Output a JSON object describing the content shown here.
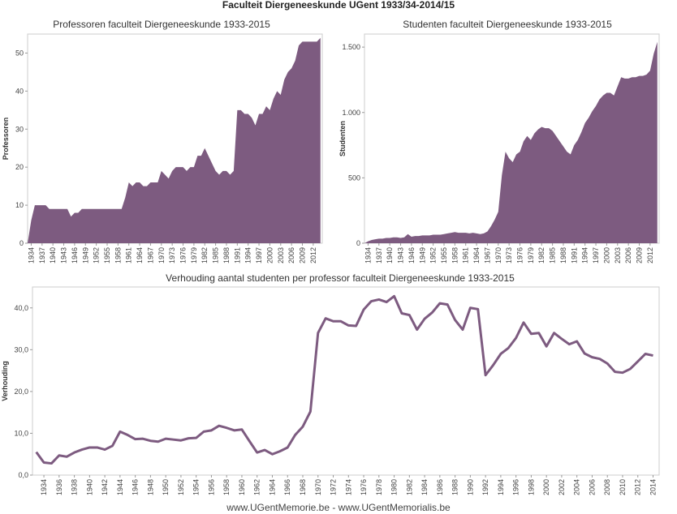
{
  "page": {
    "title": "Faculteit Diergeneeskunde UGent 1933/34-2014/15",
    "footer": "www.UGentMemorie.be - www.UGentMemorialis.be"
  },
  "colors": {
    "fill": "#7d5b80",
    "line": "#7d5b80",
    "frame": "#cccccc"
  },
  "chart_data": [
    {
      "type": "area",
      "title": "Professoren faculteit Diergeneeskunde 1933-2015",
      "ylabel": "Professoren",
      "xlabel": "",
      "ylim": [
        0,
        55
      ],
      "yticks": [
        0,
        10,
        20,
        30,
        40,
        50
      ],
      "ytick_labels": [
        "0",
        "10",
        "20",
        "30",
        "40",
        "50"
      ],
      "xticks": [
        1934,
        1937,
        1940,
        1943,
        1946,
        1949,
        1952,
        1955,
        1958,
        1961,
        1964,
        1967,
        1970,
        1973,
        1976,
        1979,
        1982,
        1985,
        1988,
        1991,
        1994,
        1997,
        2000,
        2003,
        2006,
        2009,
        2012
      ],
      "x": [
        1933,
        1934,
        1935,
        1936,
        1937,
        1938,
        1939,
        1940,
        1941,
        1942,
        1943,
        1944,
        1945,
        1946,
        1947,
        1948,
        1949,
        1950,
        1951,
        1952,
        1953,
        1954,
        1955,
        1956,
        1957,
        1958,
        1959,
        1960,
        1961,
        1962,
        1963,
        1964,
        1965,
        1966,
        1967,
        1968,
        1969,
        1970,
        1971,
        1972,
        1973,
        1974,
        1975,
        1976,
        1977,
        1978,
        1979,
        1980,
        1981,
        1982,
        1983,
        1984,
        1985,
        1986,
        1987,
        1988,
        1989,
        1990,
        1991,
        1992,
        1993,
        1994,
        1995,
        1996,
        1997,
        1998,
        1999,
        2000,
        2001,
        2002,
        2003,
        2004,
        2005,
        2006,
        2007,
        2008,
        2009,
        2010,
        2011,
        2012,
        2013,
        2014
      ],
      "values": [
        0,
        6,
        10,
        10,
        10,
        10,
        9,
        9,
        9,
        9,
        9,
        9,
        7,
        8,
        8,
        9,
        9,
        9,
        9,
        9,
        9,
        9,
        9,
        9,
        9,
        9,
        9,
        12,
        16,
        15,
        16,
        16,
        15,
        15,
        16,
        16,
        16,
        19,
        18,
        17,
        19,
        20,
        20,
        20,
        19,
        20,
        20,
        23,
        23,
        25,
        23,
        21,
        19,
        18,
        19,
        19,
        18,
        19,
        35,
        35,
        34,
        34,
        33,
        31,
        34,
        34,
        36,
        35,
        38,
        40,
        39,
        43,
        45,
        46,
        48,
        52,
        53,
        53,
        53,
        53,
        53,
        54
      ]
    },
    {
      "type": "area",
      "title": "Studenten faculteit Diergeneeskunde 1933-2015",
      "ylabel": "Studenten",
      "xlabel": "",
      "ylim": [
        0,
        1600
      ],
      "yticks": [
        0,
        500,
        1000,
        1500
      ],
      "ytick_labels": [
        "0",
        "500",
        "1.000",
        "1.500"
      ],
      "xticks": [
        1934,
        1937,
        1940,
        1943,
        1946,
        1949,
        1952,
        1955,
        1958,
        1961,
        1964,
        1967,
        1970,
        1973,
        1976,
        1979,
        1982,
        1985,
        1988,
        1991,
        1994,
        1997,
        2000,
        2003,
        2006,
        2009,
        2012
      ],
      "x": [
        1933,
        1934,
        1935,
        1936,
        1937,
        1938,
        1939,
        1940,
        1941,
        1942,
        1943,
        1944,
        1945,
        1946,
        1947,
        1948,
        1949,
        1950,
        1951,
        1952,
        1953,
        1954,
        1955,
        1956,
        1957,
        1958,
        1959,
        1960,
        1961,
        1962,
        1963,
        1964,
        1965,
        1966,
        1967,
        1968,
        1969,
        1970,
        1971,
        1972,
        1973,
        1974,
        1975,
        1976,
        1977,
        1978,
        1979,
        1980,
        1981,
        1982,
        1983,
        1984,
        1985,
        1986,
        1987,
        1988,
        1989,
        1990,
        1991,
        1992,
        1993,
        1994,
        1995,
        1996,
        1997,
        1998,
        1999,
        2000,
        2001,
        2002,
        2003,
        2004,
        2005,
        2006,
        2007,
        2008,
        2009,
        2010,
        2011,
        2012,
        2013,
        2014
      ],
      "values": [
        0,
        15,
        25,
        30,
        35,
        35,
        40,
        40,
        45,
        45,
        40,
        45,
        70,
        50,
        55,
        55,
        60,
        60,
        60,
        65,
        65,
        65,
        70,
        75,
        80,
        85,
        80,
        80,
        80,
        75,
        80,
        75,
        70,
        75,
        90,
        130,
        180,
        240,
        520,
        700,
        650,
        620,
        680,
        700,
        780,
        820,
        790,
        840,
        870,
        890,
        880,
        880,
        860,
        820,
        780,
        740,
        700,
        680,
        750,
        790,
        850,
        920,
        960,
        1010,
        1050,
        1100,
        1130,
        1150,
        1150,
        1130,
        1200,
        1270,
        1260,
        1260,
        1270,
        1270,
        1280,
        1280,
        1290,
        1320,
        1450,
        1540
      ]
    },
    {
      "type": "line",
      "title": "Verhouding aantal studenten per professor faculteit Diergeneeskunde 1933-2015",
      "ylabel": "Verhouding",
      "xlabel": "",
      "ylim": [
        0,
        45
      ],
      "yticks": [
        0,
        10,
        20,
        30,
        40
      ],
      "ytick_labels": [
        "0,0",
        "10,0",
        "20,0",
        "30,0",
        "40,0"
      ],
      "xticks": [
        1934,
        1936,
        1938,
        1940,
        1942,
        1944,
        1946,
        1948,
        1950,
        1952,
        1954,
        1956,
        1958,
        1960,
        1962,
        1964,
        1966,
        1968,
        1970,
        1972,
        1974,
        1976,
        1978,
        1980,
        1982,
        1984,
        1986,
        1988,
        1990,
        1992,
        1994,
        1996,
        1998,
        2000,
        2002,
        2004,
        2006,
        2008,
        2010,
        2012,
        2014
      ],
      "x": [
        1933,
        1934,
        1935,
        1936,
        1937,
        1938,
        1939,
        1940,
        1941,
        1942,
        1943,
        1944,
        1945,
        1946,
        1947,
        1948,
        1949,
        1950,
        1951,
        1952,
        1953,
        1954,
        1955,
        1956,
        1957,
        1958,
        1959,
        1960,
        1961,
        1962,
        1963,
        1964,
        1965,
        1966,
        1967,
        1968,
        1969,
        1970,
        1971,
        1972,
        1973,
        1974,
        1975,
        1976,
        1977,
        1978,
        1979,
        1980,
        1981,
        1982,
        1983,
        1984,
        1985,
        1986,
        1987,
        1988,
        1989,
        1990,
        1991,
        1992,
        1993,
        1994,
        1995,
        1996,
        1997,
        1998,
        1999,
        2000,
        2001,
        2002,
        2003,
        2004,
        2005,
        2006,
        2007,
        2008,
        2009,
        2010,
        2011,
        2012,
        2013,
        2014
      ],
      "values": [
        5.5,
        3.0,
        2.8,
        4.7,
        4.4,
        5.4,
        6.1,
        6.6,
        6.6,
        6.1,
        7.0,
        10.4,
        9.6,
        8.6,
        8.7,
        8.2,
        8.0,
        8.7,
        8.5,
        8.3,
        8.8,
        8.9,
        10.4,
        10.7,
        11.8,
        11.3,
        10.7,
        10.9,
        8.1,
        5.4,
        6.0,
        5.0,
        5.7,
        6.6,
        9.6,
        11.6,
        15.2,
        34.0,
        37.5,
        36.8,
        36.8,
        35.8,
        35.7,
        39.6,
        41.6,
        42.0,
        41.4,
        42.8,
        38.7,
        38.3,
        34.8,
        37.4,
        38.9,
        41.1,
        40.8,
        37.1,
        34.8,
        40.0,
        39.7,
        23.9,
        26.3,
        29.0,
        30.4,
        32.8,
        36.5,
        33.8,
        34.0,
        30.8,
        34.0,
        32.6,
        31.3,
        32.0,
        29.1,
        28.2,
        27.8,
        26.7,
        24.7,
        24.5,
        25.4,
        27.2,
        29.0,
        28.6
      ]
    }
  ]
}
